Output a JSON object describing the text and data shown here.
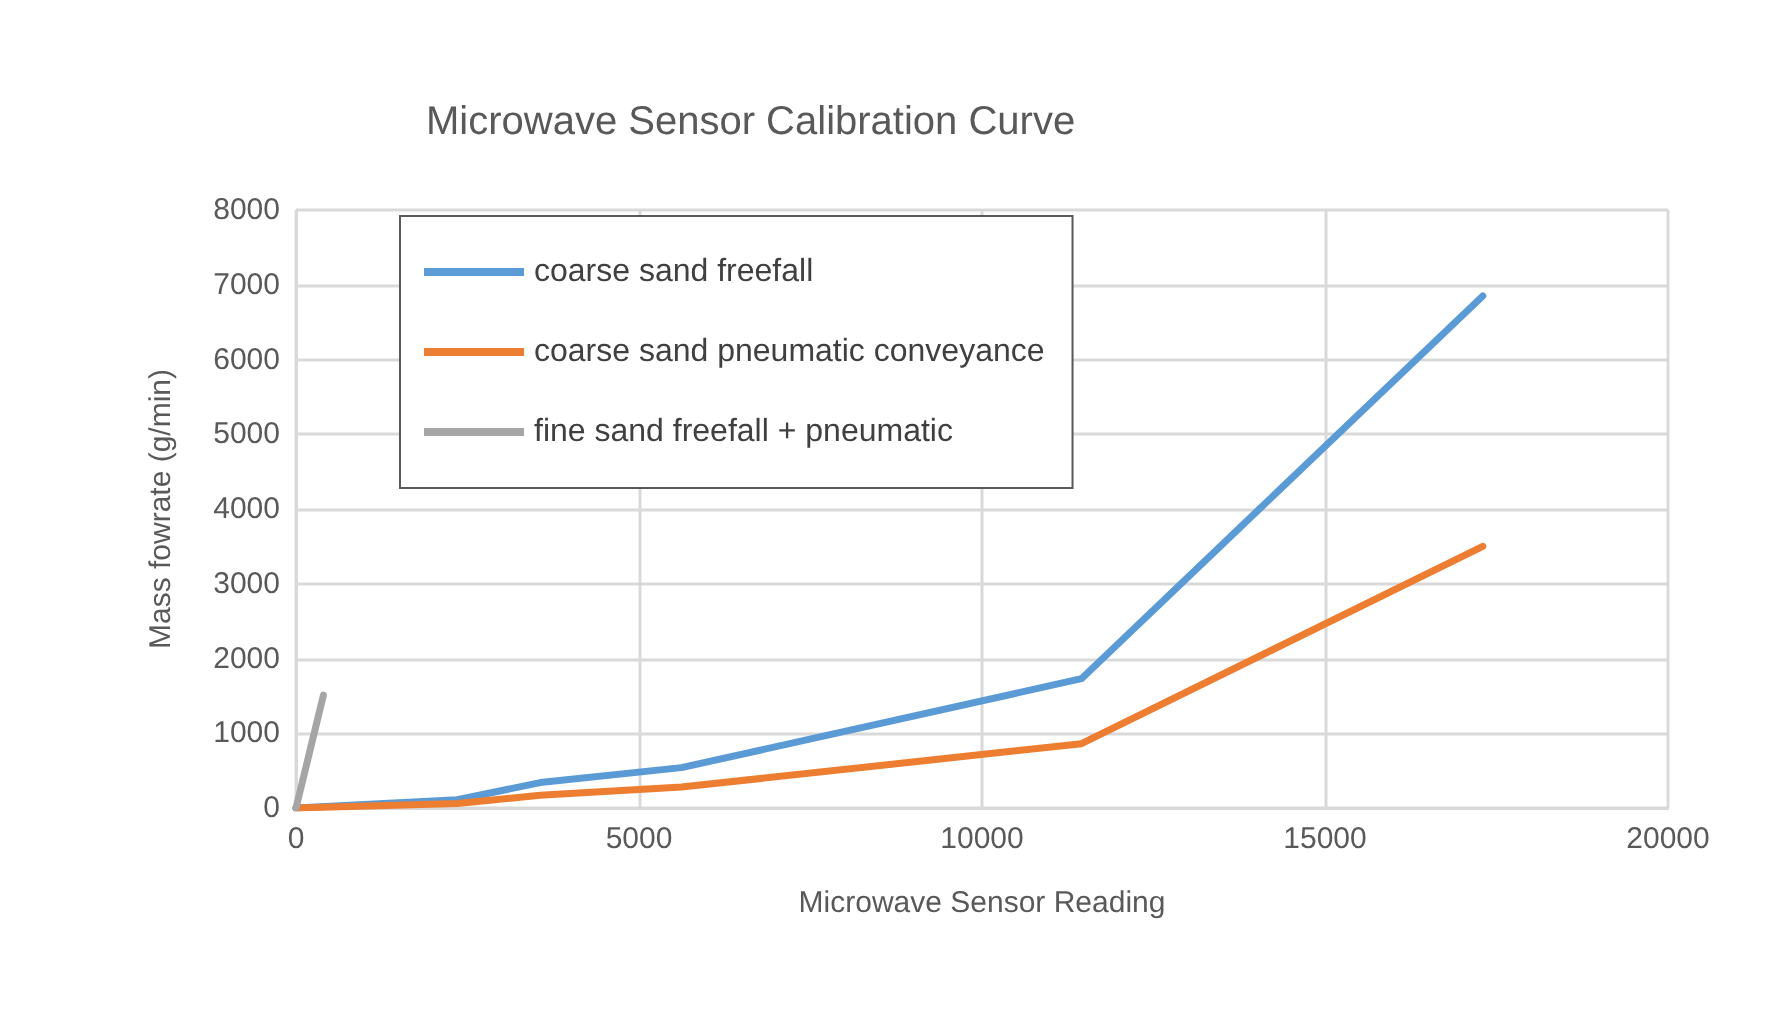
{
  "chart_data": {
    "type": "line",
    "title": "Microwave Sensor Calibration Curve",
    "xlabel": "Microwave Sensor Reading",
    "ylabel": "Mass fowrate (g/min)",
    "series": [
      {
        "name": "coarse sand freefall",
        "color": "#5b9bd5",
        "x": [
          0,
          2350,
          3560,
          5620,
          11450,
          17300
        ],
        "values": [
          0,
          110,
          340,
          540,
          1730,
          6850
        ]
      },
      {
        "name": "coarse sand pneumatic conveyance",
        "color": "#ed7d31",
        "x": [
          0,
          2350,
          3560,
          5620,
          11450,
          17300
        ],
        "values": [
          0,
          60,
          170,
          280,
          860,
          3500
        ]
      },
      {
        "name": "fine sand freefall + pneumatic",
        "color": "#a5a5a5",
        "x": [
          0,
          400
        ],
        "values": [
          0,
          1510
        ]
      }
    ],
    "xlim": [
      0,
      20000
    ],
    "xticks": [
      0,
      5000,
      10000,
      15000,
      20000
    ],
    "ylim": [
      0,
      8000
    ],
    "yticks": [
      0,
      1000,
      2000,
      3000,
      4000,
      5000,
      6000,
      7000,
      8000
    ],
    "grid": true,
    "legend": "top left",
    "marker": "none",
    "line_style": "solid"
  }
}
